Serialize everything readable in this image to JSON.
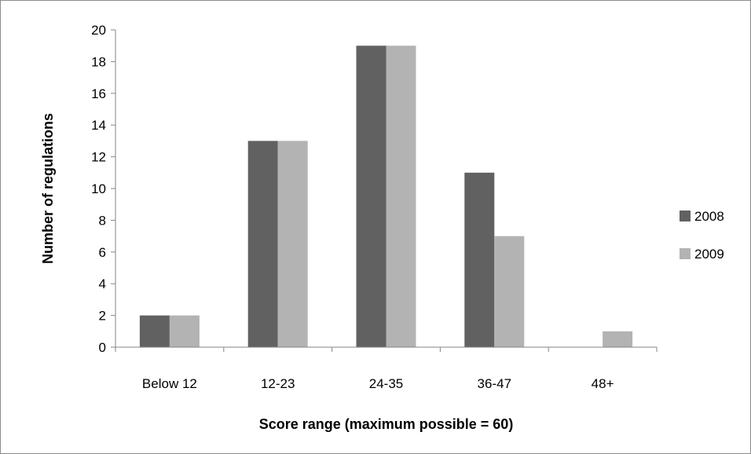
{
  "chart_data": {
    "type": "bar",
    "categories": [
      "Below 12",
      "12-23",
      "24-35",
      "36-47",
      "48+"
    ],
    "series": [
      {
        "name": "2008",
        "values": [
          2,
          13,
          19,
          11,
          0
        ],
        "color": "#616161"
      },
      {
        "name": "2009",
        "values": [
          2,
          13,
          19,
          7,
          1
        ],
        "color": "#b3b3b3"
      }
    ],
    "title": "",
    "xlabel": "Score range (maximum possible = 60)",
    "ylabel": "Number of regulations",
    "ylim": [
      0,
      20
    ],
    "yticks": [
      "0",
      "2",
      "4",
      "6",
      "8",
      "10",
      "12",
      "14",
      "16",
      "18",
      "20"
    ],
    "grid": false,
    "legend_position": "right"
  }
}
